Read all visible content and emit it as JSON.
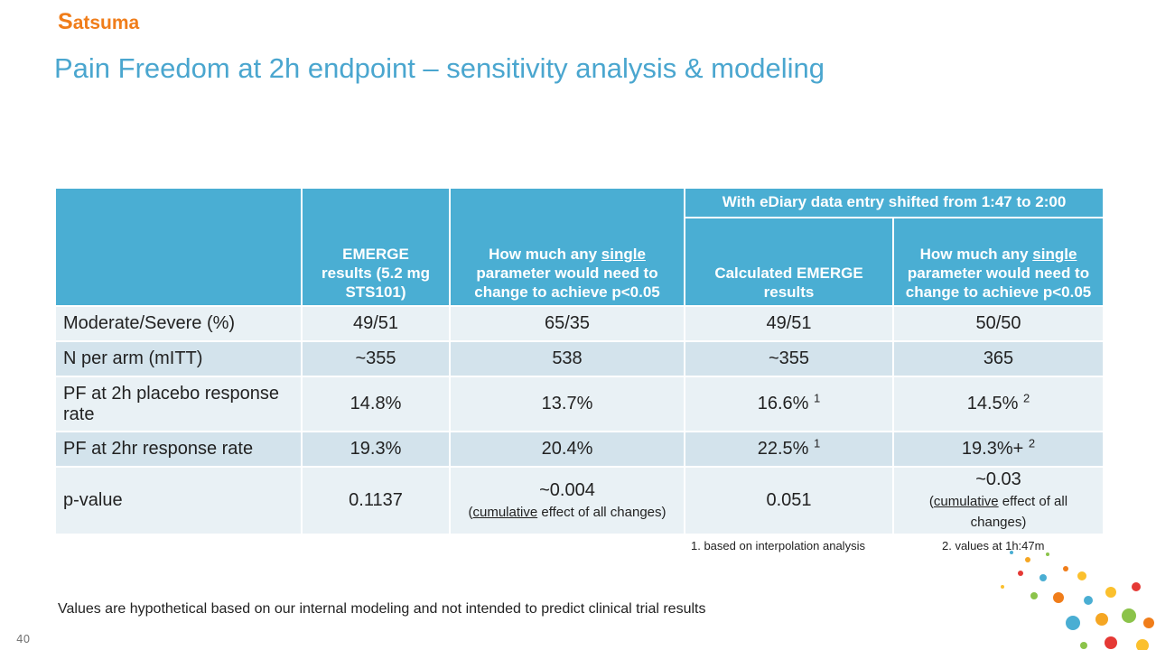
{
  "logo": {
    "initial": "S",
    "rest": "atsuma"
  },
  "title": "Pain Freedom at 2h endpoint – sensitivity analysis & modeling",
  "table": {
    "group_header": "With eDiary data entry shifted from 1:47 to 2:00",
    "columns": [
      "",
      "EMERGE results (5.2 mg STS101)",
      [
        {
          "text": "How much any "
        },
        {
          "text": "single",
          "style": "underline"
        },
        {
          "text": " parameter would need to change to achieve p<0.05"
        }
      ],
      "Calculated EMERGE results",
      [
        {
          "text": "How much any "
        },
        {
          "text": "single",
          "style": "underline"
        },
        {
          "text": " parameter would need to change to achieve p<0.05"
        }
      ]
    ],
    "rows": [
      [
        "Moderate/Severe (%)",
        "49/51",
        "65/35",
        "49/51",
        "50/50"
      ],
      [
        "N per arm (mITT)",
        "~355",
        "538",
        "~355",
        "365"
      ],
      [
        "PF at 2h placebo response rate",
        "14.8%",
        "13.7%",
        [
          {
            "text": "16.6% "
          },
          {
            "text": "1",
            "style": "sup"
          }
        ],
        [
          {
            "text": "14.5% "
          },
          {
            "text": "2",
            "style": "sup"
          }
        ]
      ],
      [
        "PF at 2hr response rate",
        "19.3%",
        "20.4%",
        [
          {
            "text": "22.5% "
          },
          {
            "text": "1",
            "style": "sup"
          }
        ],
        [
          {
            "text": "19.3%+ "
          },
          {
            "text": "2",
            "style": "sup"
          }
        ]
      ],
      [
        "p-value",
        "0.1137",
        [
          {
            "text": "~0.004"
          },
          {
            "text": "(",
            "style": "small"
          },
          {
            "text": "cumulative",
            "style": "small underline"
          },
          {
            "text": " effect of all changes)",
            "style": "small"
          }
        ],
        "0.051",
        [
          {
            "text": "~0.03"
          },
          {
            "text": "(",
            "style": "small"
          },
          {
            "text": "cumulative",
            "style": "small underline"
          },
          {
            "text": " effect of all changes)",
            "style": "small"
          }
        ]
      ]
    ]
  },
  "footnotes": [
    "1.  based on interpolation analysis",
    "2.  values at 1h:47m"
  ],
  "disclaimer": "Values are hypothetical based on our internal modeling and not intended to predict clinical trial results",
  "page_number": "40"
}
